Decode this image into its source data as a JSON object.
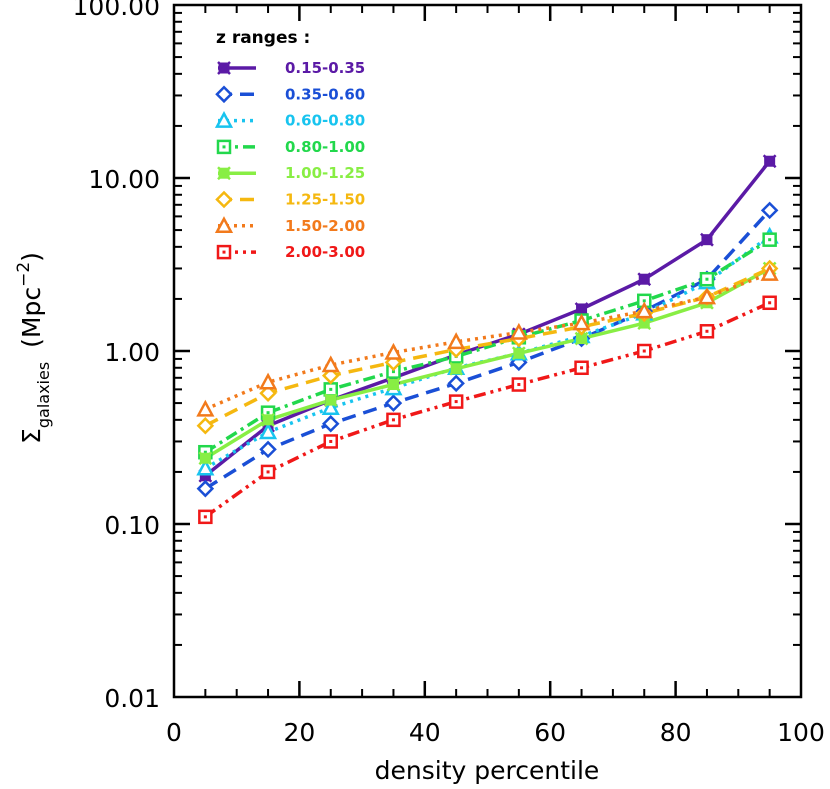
{
  "chart_data": {
    "type": "line",
    "xlabel": "density percentile",
    "ylabel_main": "Σ",
    "ylabel_sub": "galaxies",
    "ylabel_unit_open": "(Mpc",
    "ylabel_unit_exp": "−2",
    "ylabel_unit_close": ")",
    "xlim": [
      0,
      100
    ],
    "ylim": [
      0.01,
      100
    ],
    "yscale": "log",
    "grid": false,
    "legend_title": "z ranges :",
    "legend_position": "top-left",
    "xticks": [
      0,
      20,
      40,
      60,
      80,
      100
    ],
    "xtick_labels": [
      "0",
      "20",
      "40",
      "60",
      "80",
      "100"
    ],
    "yticks": [
      0.01,
      0.1,
      1,
      10,
      100
    ],
    "ytick_labels": [
      "0.01",
      "0.10",
      "1.00",
      "10.00",
      "100.00"
    ],
    "x": [
      5,
      15,
      25,
      35,
      45,
      55,
      65,
      75,
      85,
      95
    ],
    "series": [
      {
        "name": "0.15-0.35",
        "color": "#5b1aa6",
        "dash": "solid",
        "marker": "x-square",
        "values": [
          0.19,
          0.37,
          0.52,
          0.7,
          0.95,
          1.25,
          1.75,
          2.6,
          4.4,
          12.5
        ]
      },
      {
        "name": "0.35-0.60",
        "color": "#1a4fd6",
        "dash": "dashed",
        "marker": "diamond",
        "values": [
          0.16,
          0.27,
          0.38,
          0.5,
          0.65,
          0.86,
          1.18,
          1.7,
          2.6,
          6.5
        ]
      },
      {
        "name": "0.60-0.80",
        "color": "#18c4ef",
        "dash": "dotted",
        "marker": "triangle",
        "values": [
          0.21,
          0.34,
          0.47,
          0.61,
          0.8,
          0.97,
          1.22,
          1.65,
          2.5,
          4.6
        ]
      },
      {
        "name": "0.80-1.00",
        "color": "#22d84c",
        "dash": "dashdot",
        "marker": "square",
        "values": [
          0.26,
          0.44,
          0.6,
          0.76,
          0.93,
          1.2,
          1.5,
          1.95,
          2.6,
          4.4
        ]
      },
      {
        "name": "1.00-1.25",
        "color": "#88ee44",
        "dash": "solid",
        "marker": "x-square",
        "values": [
          0.24,
          0.4,
          0.52,
          0.64,
          0.79,
          0.97,
          1.18,
          1.45,
          1.9,
          3.0
        ]
      },
      {
        "name": "1.25-1.50",
        "color": "#f5b810",
        "dash": "dashed",
        "marker": "diamond",
        "values": [
          0.37,
          0.57,
          0.72,
          0.86,
          1.02,
          1.18,
          1.38,
          1.65,
          2.05,
          3.0
        ]
      },
      {
        "name": "1.50-2.00",
        "color": "#f27a1c",
        "dash": "dotted",
        "marker": "triangle",
        "values": [
          0.46,
          0.66,
          0.83,
          0.98,
          1.13,
          1.28,
          1.45,
          1.7,
          2.05,
          2.8
        ]
      },
      {
        "name": "2.00-3.00",
        "color": "#f01818",
        "dash": "dashdotdot",
        "marker": "square",
        "values": [
          0.11,
          0.2,
          0.3,
          0.4,
          0.51,
          0.64,
          0.8,
          1.0,
          1.3,
          1.9
        ]
      }
    ]
  }
}
